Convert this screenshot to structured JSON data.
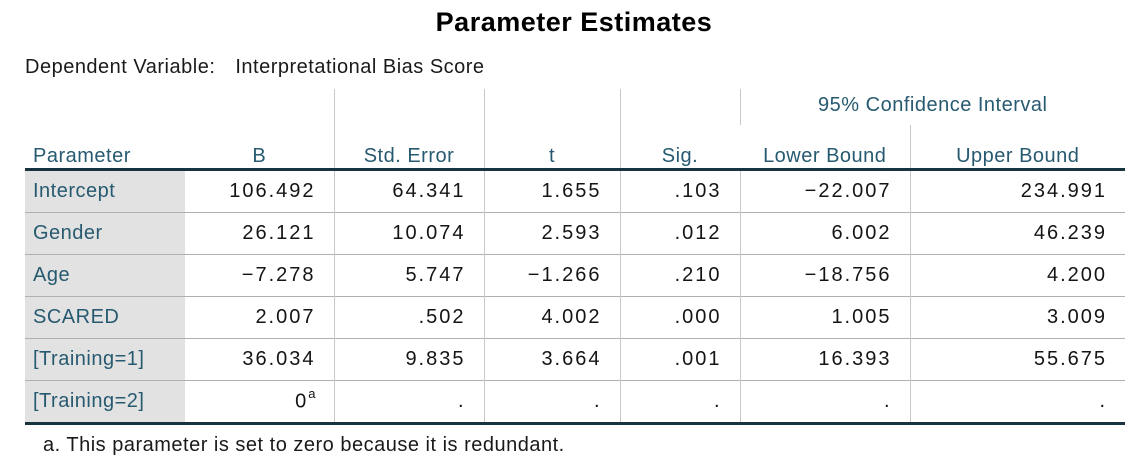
{
  "title": "Parameter Estimates",
  "dependent_variable": {
    "label": "Dependent Variable:",
    "value": "Interpretational Bias Score"
  },
  "table": {
    "column_headers": {
      "parameter": "Parameter",
      "b": "B",
      "std_error": "Std. Error",
      "t": "t",
      "sig": "Sig.",
      "ci_group": "95% Confidence Interval",
      "lower": "Lower Bound",
      "upper": "Upper Bound"
    },
    "rows": [
      {
        "parameter": "Intercept",
        "b": "106.492",
        "std_error": "64.341",
        "t": "1.655",
        "sig": ".103",
        "lower": "−22.007",
        "upper": "234.991"
      },
      {
        "parameter": "Gender",
        "b": "26.121",
        "std_error": "10.074",
        "t": "2.593",
        "sig": ".012",
        "lower": "6.002",
        "upper": "46.239"
      },
      {
        "parameter": "Age",
        "b": "−7.278",
        "std_error": "5.747",
        "t": "−1.266",
        "sig": ".210",
        "lower": "−18.756",
        "upper": "4.200"
      },
      {
        "parameter": "SCARED",
        "b": "2.007",
        "std_error": ".502",
        "t": "4.002",
        "sig": ".000",
        "lower": "1.005",
        "upper": "3.009"
      },
      {
        "parameter": "[Training=1]",
        "b": "36.034",
        "std_error": "9.835",
        "t": "3.664",
        "sig": ".001",
        "lower": "16.393",
        "upper": "55.675"
      },
      {
        "parameter": "[Training=2]",
        "b": "0",
        "b_sup": "a",
        "std_error": ".",
        "t": ".",
        "sig": ".",
        "lower": ".",
        "upper": "."
      }
    ]
  },
  "footnote": "a. This parameter is set to zero because it is redundant.",
  "colors": {
    "header_text": "#275a70",
    "row_label_text": "#275a70",
    "thick_border": "#17333f",
    "row_separator": "#b0b0b0",
    "column_separator": "#c8c8c8",
    "row_label_background": "#e2e2e2",
    "body_text": "#141414",
    "background": "#ffffff"
  }
}
